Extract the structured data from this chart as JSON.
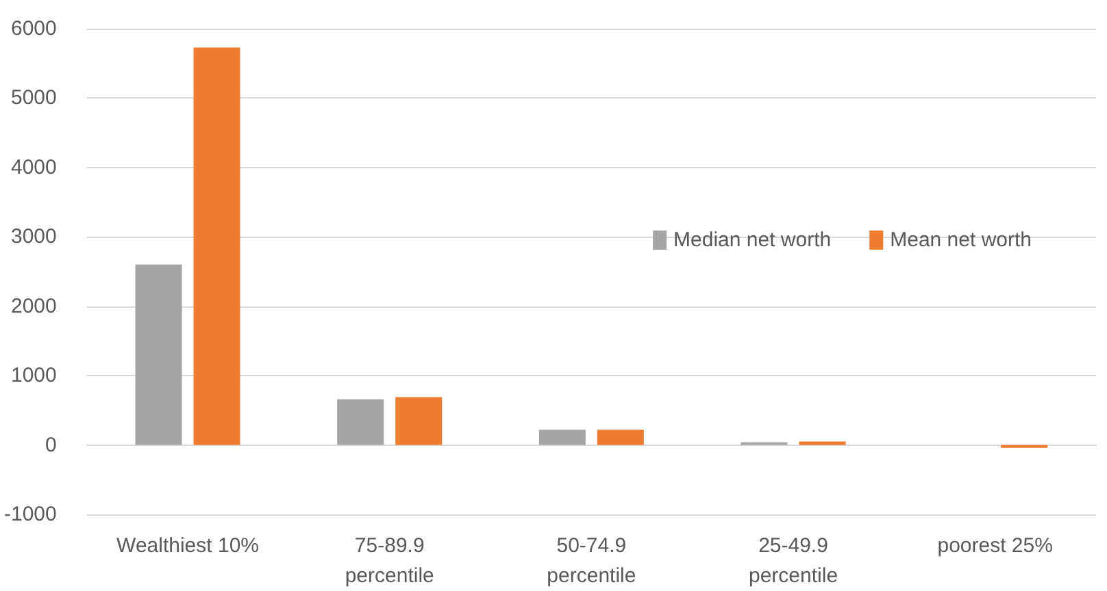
{
  "chart_data": {
    "type": "bar",
    "categories": [
      "Wealthiest 10%",
      "75-89.9\npercentile",
      "50-74.9\npercentile",
      "25-49.9\npercentile",
      "poorest 25%"
    ],
    "series": [
      {
        "name": "Median net worth",
        "color": "#a5a5a5",
        "values": [
          2600,
          660,
          220,
          40,
          0
        ]
      },
      {
        "name": "Mean net worth",
        "color": "#ed7d31",
        "values": [
          5730,
          690,
          220,
          50,
          -40
        ]
      }
    ],
    "ylim": [
      -1000,
      6000
    ],
    "yticks": [
      -1000,
      0,
      1000,
      2000,
      3000,
      4000,
      5000,
      6000
    ],
    "grid": "y",
    "legend": "right"
  }
}
